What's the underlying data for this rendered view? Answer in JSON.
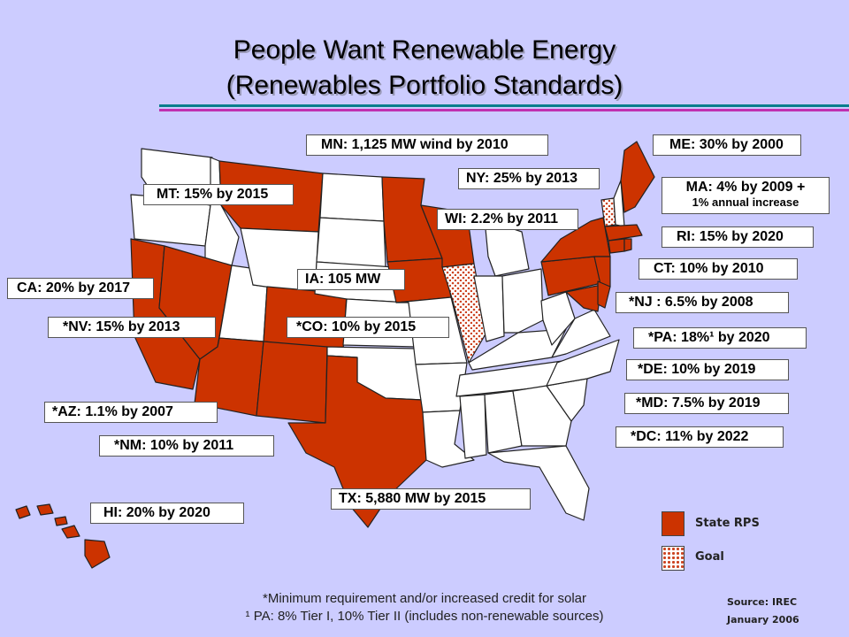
{
  "title_line1": "People Want Renewable Energy",
  "title_line2": "(Renewables Portfolio Standards)",
  "labels": {
    "mn": "MN: 1,125 MW wind by 2010",
    "me": "ME: 30% by 2000",
    "ny": "NY: 25% by 2013",
    "mt": "MT: 15% by 2015",
    "ma_line1": "MA: 4% by 2009 +",
    "ma_line2": "1% annual increase",
    "wi": "WI: 2.2% by 2011",
    "ri": "RI: 15% by 2020",
    "ct": "CT: 10% by 2010",
    "ia": "IA: 105 MW",
    "ca": "CA: 20% by 2017",
    "nj": "*NJ : 6.5% by 2008",
    "nv": "*NV: 15% by 2013",
    "co": "*CO: 10% by 2015",
    "pa": "*PA: 18%¹ by 2020",
    "de": "*DE: 10% by 2019",
    "md": "*MD: 7.5% by 2019",
    "az": "*AZ: 1.1% by 2007",
    "dc": "*DC: 11% by 2022",
    "nm": "*NM: 10% by 2011",
    "tx": "TX: 5,880 MW by 2015",
    "hi": "HI: 20% by 2020"
  },
  "legend": {
    "rps": "State RPS",
    "goal": "Goal"
  },
  "colors": {
    "rps": "#cc3300",
    "goal_dots": "#cc4422",
    "background": "#ccccff"
  },
  "footnote_line1": "*Minimum requirement and/or increased credit for solar",
  "footnote_line2": "¹ PA: 8% Tier I, 10% Tier II (includes non-renewable sources)",
  "source": "Source: IREC",
  "date": "January 2006"
}
